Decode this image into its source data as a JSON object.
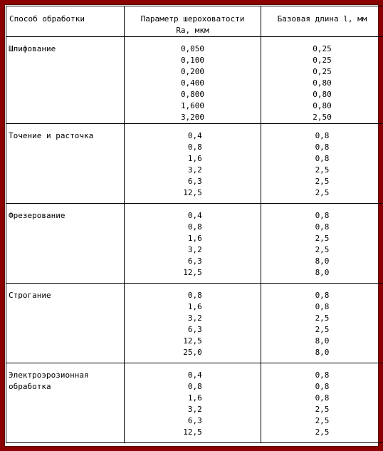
{
  "table": {
    "headers": {
      "method": "Способ обработки",
      "ra_line1": "Параметр шероховатости",
      "ra_line2": "Ra, мкм",
      "length": "Базовая длина l, мм"
    },
    "rows": [
      {
        "method": "Шлифование",
        "ra": [
          "0,050",
          "0,100",
          "0,200",
          "0,400",
          "0,800",
          "1,600",
          "3,200"
        ],
        "length": [
          "0,25",
          "0,25",
          "0,25",
          "0,80",
          "0,80",
          "0,80",
          "2,50"
        ]
      },
      {
        "method": "Точение и расточка",
        "ra": [
          " 0,4",
          " 0,8",
          " 1,6",
          " 3,2",
          " 6,3",
          "12,5"
        ],
        "length": [
          "0,8",
          "0,8",
          "0,8",
          "2,5",
          "2,5",
          "2,5"
        ]
      },
      {
        "method": "Фрезерование",
        "ra": [
          " 0,4",
          " 0,8",
          " 1,6",
          " 3,2",
          " 6,3",
          "12,5"
        ],
        "length": [
          "0,8",
          "0,8",
          "2,5",
          "2,5",
          "8,0",
          "8,0"
        ]
      },
      {
        "method": "Строгание",
        "ra": [
          " 0,8",
          " 1,6",
          " 3,2",
          " 6,3",
          "12,5",
          "25,0"
        ],
        "length": [
          "0,8",
          "0,8",
          "2,5",
          "2,5",
          "8,0",
          "8,0"
        ]
      },
      {
        "method": "Электроэрозионная\nобработка",
        "ra": [
          " 0,4",
          " 0,8",
          " 1,6",
          " 3,2",
          " 6,3",
          "12,5"
        ],
        "length": [
          "0,8",
          "0,8",
          "0,8",
          "2,5",
          "2,5",
          "2,5"
        ]
      }
    ]
  },
  "colors": {
    "frame": "#8b0000",
    "background": "#ffffff",
    "text": "#000000"
  }
}
